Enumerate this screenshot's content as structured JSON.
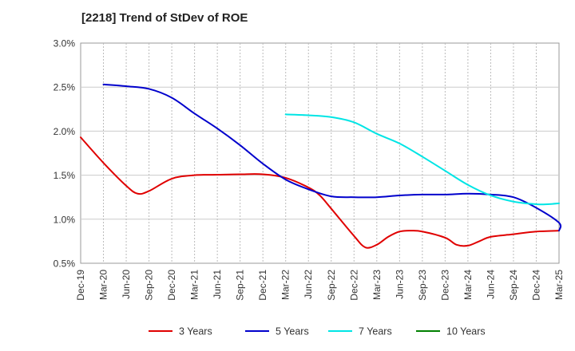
{
  "title": "[2218]  Trend of StDev of ROE",
  "chart_data": {
    "type": "line",
    "title": "[2218]  Trend of StDev of ROE",
    "xlabel": "",
    "ylabel": "",
    "ylim": [
      0.5,
      3.0
    ],
    "y_ticks": [
      "0.5%",
      "1.0%",
      "1.5%",
      "2.0%",
      "2.5%",
      "3.0%"
    ],
    "y_tick_values": [
      0.5,
      1.0,
      1.5,
      2.0,
      2.5,
      3.0
    ],
    "x_ticks": [
      "Dec-19",
      "Mar-20",
      "Jun-20",
      "Sep-20",
      "Dec-20",
      "Mar-21",
      "Jun-21",
      "Sep-21",
      "Dec-21",
      "Mar-22",
      "Jun-22",
      "Sep-22",
      "Dec-22",
      "Mar-23",
      "Jun-23",
      "Sep-23",
      "Dec-23",
      "Mar-24",
      "Jun-24",
      "Sep-24",
      "Dec-24",
      "Mar-25"
    ],
    "grid": "vertical dashed, horizontal solid",
    "legend_position": "bottom",
    "series": [
      {
        "name": "3 Years",
        "color": "#e00000",
        "points": [
          [
            0,
            1.93
          ],
          [
            1,
            1.64
          ],
          [
            2,
            1.38
          ],
          [
            2.5,
            1.29
          ],
          [
            3,
            1.32
          ],
          [
            4,
            1.46
          ],
          [
            5,
            1.5
          ],
          [
            6,
            1.505
          ],
          [
            7,
            1.51
          ],
          [
            8,
            1.51
          ],
          [
            9,
            1.47
          ],
          [
            10,
            1.36
          ],
          [
            10.5,
            1.27
          ],
          [
            11,
            1.12
          ],
          [
            12,
            0.81
          ],
          [
            12.5,
            0.68
          ],
          [
            13,
            0.71
          ],
          [
            13.5,
            0.8
          ],
          [
            14,
            0.86
          ],
          [
            14.5,
            0.87
          ],
          [
            15,
            0.86
          ],
          [
            16,
            0.79
          ],
          [
            16.5,
            0.71
          ],
          [
            17,
            0.7
          ],
          [
            17.5,
            0.75
          ],
          [
            18,
            0.8
          ],
          [
            19,
            0.83
          ],
          [
            20,
            0.86
          ],
          [
            21,
            0.87
          ]
        ]
      },
      {
        "name": "5 Years",
        "color": "#0000cc",
        "points": [
          [
            1,
            2.53
          ],
          [
            2,
            2.51
          ],
          [
            3,
            2.48
          ],
          [
            4,
            2.38
          ],
          [
            5,
            2.2
          ],
          [
            6,
            2.03
          ],
          [
            7,
            1.84
          ],
          [
            8,
            1.63
          ],
          [
            9,
            1.45
          ],
          [
            10,
            1.34
          ],
          [
            11,
            1.26
          ],
          [
            12,
            1.25
          ],
          [
            13,
            1.25
          ],
          [
            14,
            1.27
          ],
          [
            15,
            1.28
          ],
          [
            16,
            1.28
          ],
          [
            17,
            1.29
          ],
          [
            18,
            1.28
          ],
          [
            19,
            1.25
          ],
          [
            20,
            1.13
          ],
          [
            21,
            0.96
          ],
          [
            21,
            0.87
          ]
        ]
      },
      {
        "name": "7 Years",
        "color": "#00e5e5",
        "points": [
          [
            9,
            2.19
          ],
          [
            10,
            2.18
          ],
          [
            11,
            2.16
          ],
          [
            12,
            2.1
          ],
          [
            13,
            1.97
          ],
          [
            14,
            1.86
          ],
          [
            15,
            1.71
          ],
          [
            16,
            1.55
          ],
          [
            17,
            1.39
          ],
          [
            18,
            1.27
          ],
          [
            19,
            1.2
          ],
          [
            20,
            1.17
          ],
          [
            20.5,
            1.17
          ],
          [
            21,
            1.18
          ]
        ]
      },
      {
        "name": "10 Years",
        "color": "#008000",
        "points": []
      }
    ]
  }
}
